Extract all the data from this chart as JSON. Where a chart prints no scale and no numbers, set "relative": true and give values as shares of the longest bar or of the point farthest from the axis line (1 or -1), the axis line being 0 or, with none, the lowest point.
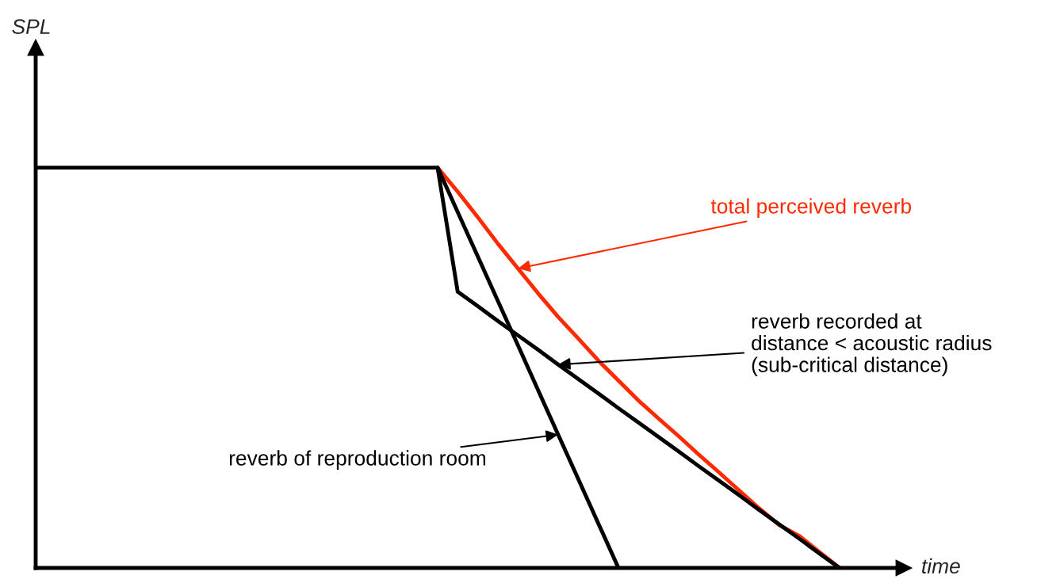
{
  "chart_data": {
    "type": "line",
    "relative": true,
    "xlabel": "time",
    "marker": "none",
    "line_style": "solid",
    "categories": [
      null,
      null,
      null,
      null,
      null,
      null,
      null,
      null,
      null,
      null,
      null,
      null,
      null,
      null,
      null,
      null,
      null,
      null,
      null,
      null,
      null,
      null,
      null,
      null,
      null,
      null,
      null,
      null,
      null,
      null,
      null,
      null,
      null,
      null,
      null,
      null,
      null,
      null,
      null,
      null,
      null
    ],
    "series": [
      {
        "color": "#ff2a00",
        "values": [
          null,
          null,
          null,
          null,
          null,
          null,
          null,
          null,
          null,
          null,
          null,
          null,
          null,
          null,
          null,
          null,
          null,
          null,
          null,
          null,
          1,
          0.94,
          0.876,
          0.81,
          0.748,
          0.686,
          0.627,
          0.573,
          0.518,
          0.468,
          0.418,
          0.373,
          0.329,
          0.283,
          0.239,
          0.194,
          0.149,
          0.107,
          0.08,
          0.04,
          0
        ]
      },
      {
        "color": "#000000",
        "values": [
          1,
          1,
          1,
          1,
          1,
          1,
          1,
          1,
          1,
          1,
          1,
          1,
          1,
          1,
          1,
          1,
          1,
          1,
          1,
          1,
          1,
          0.889,
          0.778,
          0.667,
          0.556,
          0.444,
          0.333,
          0.222,
          0.111,
          0,
          null,
          null,
          null,
          null,
          null,
          null,
          null,
          null,
          null,
          null,
          null
        ]
      },
      {
        "color": "#000000",
        "values": [
          null,
          null,
          null,
          null,
          null,
          null,
          null,
          null,
          null,
          null,
          null,
          null,
          null,
          null,
          null,
          null,
          null,
          null,
          null,
          null,
          1,
          0.69,
          0.654,
          0.617,
          0.581,
          0.545,
          0.508,
          0.472,
          0.436,
          0.399,
          0.363,
          0.327,
          0.291,
          0.254,
          0.218,
          0.182,
          0.145,
          0.109,
          0.073,
          0.036,
          0
        ]
      }
    ],
    "annotations": [
      "total perceived reverb",
      "reverb of reproduction room",
      "reverb recorded at\ndistance < acoustic radius\n(sub-critical distance)",
      "SPL"
    ]
  }
}
